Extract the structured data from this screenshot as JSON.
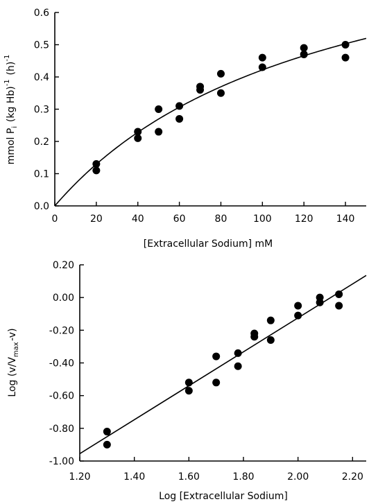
{
  "chart_data": [
    {
      "type": "scatter",
      "title": "",
      "xlabel": "[Extracellular Sodium] mM",
      "ylabel": {
        "prefix": "mmol P",
        "sub": "i",
        "middle": " (kg Hb)",
        "sup": "-1",
        "after": " (h)",
        "sup2": "-1"
      },
      "xlim": [
        0,
        150
      ],
      "ylim": [
        0,
        0.6
      ],
      "xticks": [
        0,
        20,
        40,
        60,
        80,
        100,
        120,
        140
      ],
      "xtick_labels": [
        "0",
        "20",
        "40",
        "60",
        "80",
        "100",
        "120",
        "140"
      ],
      "yticks": [
        0,
        0.1,
        0.2,
        0.3,
        0.4,
        0.5,
        0.6
      ],
      "ytick_labels": [
        "0.0",
        "0.1",
        "0.2",
        "0.3",
        "0.4",
        "0.5",
        "0.6"
      ],
      "grid": false,
      "points": [
        {
          "x": 20,
          "y": 0.13
        },
        {
          "x": 20,
          "y": 0.11
        },
        {
          "x": 40,
          "y": 0.23
        },
        {
          "x": 40,
          "y": 0.21
        },
        {
          "x": 50,
          "y": 0.3
        },
        {
          "x": 50,
          "y": 0.23
        },
        {
          "x": 60,
          "y": 0.31
        },
        {
          "x": 60,
          "y": 0.27
        },
        {
          "x": 70,
          "y": 0.37
        },
        {
          "x": 70,
          "y": 0.36
        },
        {
          "x": 80,
          "y": 0.41
        },
        {
          "x": 80,
          "y": 0.35
        },
        {
          "x": 100,
          "y": 0.46
        },
        {
          "x": 100,
          "y": 0.43
        },
        {
          "x": 120,
          "y": 0.49
        },
        {
          "x": 120,
          "y": 0.47
        },
        {
          "x": 140,
          "y": 0.5
        },
        {
          "x": 140,
          "y": 0.46
        }
      ],
      "fit_curve": {
        "kind": "michaelis-menten",
        "vmax": 0.97,
        "km": 130,
        "x_range": [
          0,
          150
        ]
      }
    },
    {
      "type": "scatter",
      "title": "",
      "xlabel": "Log [Extracellular Sodium]",
      "ylabel": {
        "prefix": "Log  (v/V",
        "sub": "max",
        "after": "-v)"
      },
      "xlim": [
        1.2,
        2.25
      ],
      "ylim": [
        -1.0,
        0.2
      ],
      "xticks": [
        1.2,
        1.4,
        1.6,
        1.8,
        2.0,
        2.2
      ],
      "xtick_labels": [
        "1.20",
        "1.40",
        "1.60",
        "1.80",
        "2.00",
        "2.20"
      ],
      "yticks": [
        -1.0,
        -0.8,
        -0.6,
        -0.4,
        -0.2,
        0.0,
        0.2
      ],
      "ytick_labels": [
        "-1.00",
        "-0.80",
        "-0.60",
        "-0.40",
        "-0.20",
        "0.00",
        "0.20"
      ],
      "grid": false,
      "points": [
        {
          "x": 1.3,
          "y": -0.82
        },
        {
          "x": 1.3,
          "y": -0.9
        },
        {
          "x": 1.6,
          "y": -0.52
        },
        {
          "x": 1.6,
          "y": -0.57
        },
        {
          "x": 1.7,
          "y": -0.36
        },
        {
          "x": 1.7,
          "y": -0.52
        },
        {
          "x": 1.78,
          "y": -0.34
        },
        {
          "x": 1.78,
          "y": -0.42
        },
        {
          "x": 1.84,
          "y": -0.22
        },
        {
          "x": 1.84,
          "y": -0.24
        },
        {
          "x": 1.9,
          "y": -0.14
        },
        {
          "x": 1.9,
          "y": -0.26
        },
        {
          "x": 2.0,
          "y": -0.05
        },
        {
          "x": 2.0,
          "y": -0.11
        },
        {
          "x": 2.08,
          "y": 0.0
        },
        {
          "x": 2.08,
          "y": -0.03
        },
        {
          "x": 2.15,
          "y": 0.02
        },
        {
          "x": 2.15,
          "y": -0.05
        }
      ],
      "fit_line": {
        "x1": 1.2,
        "y1": -0.955,
        "x2": 2.25,
        "y2": 0.135
      }
    }
  ]
}
